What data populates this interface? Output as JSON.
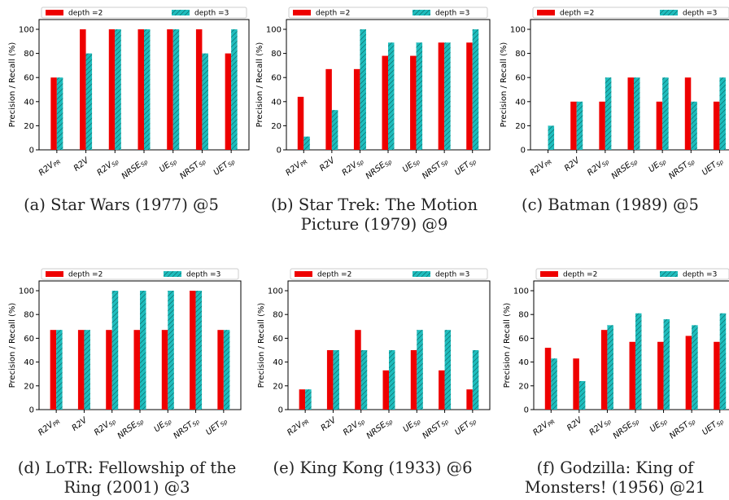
{
  "colors": {
    "depth2": "#ee0000",
    "depth3": "#1fbdbd",
    "hatch": "#0f6a6a"
  },
  "legend": {
    "depth2": "depth =2",
    "depth3": "depth =3"
  },
  "ylabel": "Precision / Recall (%)",
  "yticks": [
    0,
    20,
    40,
    60,
    80,
    100
  ],
  "xticks": [
    {
      "base": "R2V",
      "sub": "PR"
    },
    {
      "base": "R2V",
      "sub": ""
    },
    {
      "base": "R2V",
      "sub": "Sp"
    },
    {
      "base": "NRSE",
      "sub": "Sp"
    },
    {
      "base": "UE",
      "sub": "Sp"
    },
    {
      "base": "NRST",
      "sub": "Sp"
    },
    {
      "base": "UET",
      "sub": "Sp"
    }
  ],
  "chart_data": [
    {
      "type": "bar",
      "caption": "(a) Star Wars (1977) @5",
      "ylabel": "Precision / Recall (%)",
      "ylim": [
        0,
        100
      ],
      "series": [
        {
          "name": "depth =2",
          "values": [
            60,
            100,
            100,
            100,
            100,
            100,
            80
          ]
        },
        {
          "name": "depth =3",
          "values": [
            60,
            80,
            100,
            100,
            100,
            80,
            100
          ]
        }
      ]
    },
    {
      "type": "bar",
      "caption": "(b) Star Trek: The Motion Picture (1979) @9",
      "ylabel": "Precision / Recall (%)",
      "ylim": [
        0,
        100
      ],
      "series": [
        {
          "name": "depth =2",
          "values": [
            44,
            67,
            67,
            78,
            78,
            89,
            89
          ]
        },
        {
          "name": "depth =3",
          "values": [
            11,
            33,
            100,
            89,
            89,
            89,
            100
          ]
        }
      ]
    },
    {
      "type": "bar",
      "caption": "(c) Batman (1989) @5",
      "ylabel": "Precision / Recall (%)",
      "ylim": [
        0,
        100
      ],
      "series": [
        {
          "name": "depth =2",
          "values": [
            0,
            40,
            40,
            60,
            40,
            60,
            40
          ]
        },
        {
          "name": "depth =3",
          "values": [
            20,
            40,
            60,
            60,
            60,
            40,
            60
          ]
        }
      ]
    },
    {
      "type": "bar",
      "caption": "(d) LoTR: Fellowship of the Ring (2001) @3",
      "ylabel": "Precision / Recall (%)",
      "ylim": [
        0,
        100
      ],
      "series": [
        {
          "name": "depth =2",
          "values": [
            67,
            67,
            67,
            67,
            67,
            100,
            67
          ]
        },
        {
          "name": "depth =3",
          "values": [
            67,
            67,
            100,
            100,
            100,
            100,
            67
          ]
        }
      ]
    },
    {
      "type": "bar",
      "caption": "(e) King Kong (1933) @6",
      "ylabel": "Precision / Recall (%)",
      "ylim": [
        0,
        100
      ],
      "series": [
        {
          "name": "depth =2",
          "values": [
            17,
            50,
            67,
            33,
            50,
            33,
            17
          ]
        },
        {
          "name": "depth =3",
          "values": [
            17,
            50,
            50,
            50,
            67,
            67,
            50
          ]
        }
      ]
    },
    {
      "type": "bar",
      "caption": "(f) Godzilla: King of Monsters! (1956) @21",
      "ylabel": "Precision / Recall (%)",
      "ylim": [
        0,
        100
      ],
      "series": [
        {
          "name": "depth =2",
          "values": [
            52,
            43,
            67,
            57,
            57,
            62,
            57
          ]
        },
        {
          "name": "depth =3",
          "values": [
            43,
            24,
            71,
            81,
            76,
            71,
            81
          ]
        }
      ]
    }
  ]
}
